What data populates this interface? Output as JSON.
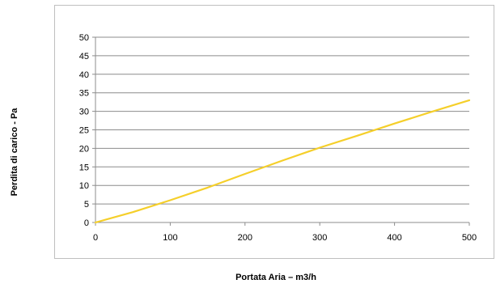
{
  "chart_data": {
    "type": "line",
    "title": "",
    "xlabel": "Portata Aria – m3/h",
    "ylabel": "Perdita di carico - Pa",
    "xlim": [
      0,
      500
    ],
    "ylim": [
      0,
      50
    ],
    "x_ticks": [
      0,
      100,
      200,
      300,
      400,
      500
    ],
    "y_ticks": [
      0,
      5,
      10,
      15,
      20,
      25,
      30,
      35,
      40,
      45,
      50
    ],
    "grid": "horizontal",
    "legend": "none",
    "series": [
      {
        "color": "#f5cf2a",
        "x": [
          0,
          50,
          100,
          150,
          200,
          250,
          300,
          350,
          400,
          450,
          500
        ],
        "y": [
          0,
          2.8,
          6.0,
          9.4,
          13.1,
          16.7,
          20.2,
          23.4,
          26.7,
          29.9,
          33.0
        ]
      }
    ]
  }
}
